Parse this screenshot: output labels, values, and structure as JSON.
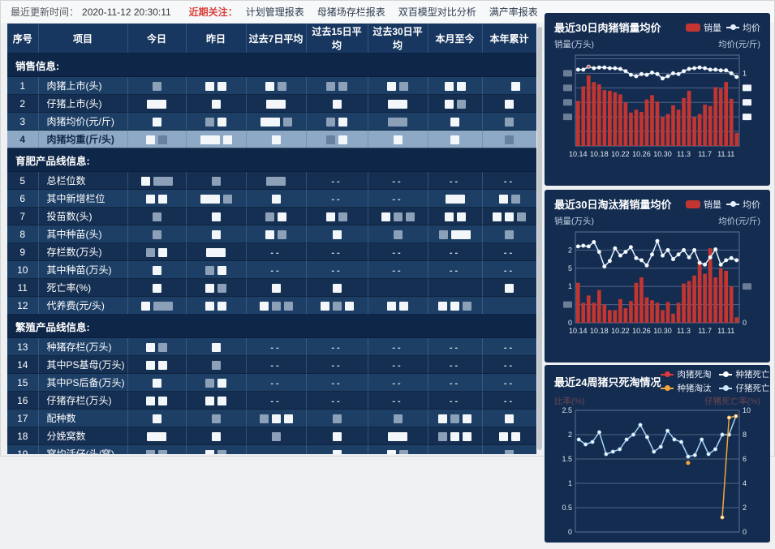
{
  "colors": {
    "bar_red": "#c23531",
    "line_light": "#e4f0fb",
    "accent_red": "#d9413d",
    "row_medium": "#1d3f66",
    "row_dark": "#152f52",
    "row_highlight": "#8ea9c6",
    "section_bg": "#0e2647",
    "header_bg": "#183760",
    "card_bg": "#132c50"
  },
  "topbar": {
    "updated_label": "最近更新时间：",
    "updated_time": "2020-11-12 20:30:11",
    "focus_label": "近期关注：",
    "links": [
      "计划管理报表",
      "母猪场存栏报表",
      "双百模型对比分析",
      "满产率报表"
    ]
  },
  "table": {
    "headers": [
      "序号",
      "项目",
      "今日",
      "昨日",
      "过去7日平均",
      "过去15日平均",
      "过去30日平均",
      "本月至今",
      "本年累计"
    ],
    "groups": [
      {
        "section": "销售信息:",
        "rows": [
          {
            "no": "1",
            "label": "肉猪上市(头)",
            "shade": "m",
            "cells": [
              "g",
              "w w",
              "w g",
              "g g",
              "w g",
              "w w",
              "gg w"
            ]
          },
          {
            "no": "2",
            "label": "仔猪上市(头)",
            "shade": "d",
            "cells": [
              "lw",
              "w",
              "lw",
              "w",
              "lw",
              "w g",
              "w"
            ]
          },
          {
            "no": "3",
            "label": "肉猪均价(元/斤)",
            "shade": "m",
            "cells": [
              "w",
              "g w",
              "lw g",
              "g w",
              "lg",
              "w",
              "g"
            ]
          },
          {
            "no": "4",
            "label": "肉猪均重(斤/头)",
            "shade": "h",
            "cells": [
              "w g",
              "lw w",
              "w",
              "g w",
              "w",
              "w",
              "g"
            ]
          }
        ]
      },
      {
        "section": "育肥产品线信息:",
        "rows": [
          {
            "no": "5",
            "label": "总栏位数",
            "shade": "d",
            "cells": [
              "w lg",
              "g",
              "lg",
              "d",
              "d",
              "d",
              "d"
            ]
          },
          {
            "no": "6",
            "label": "其中新增栏位",
            "shade": "m",
            "cells": [
              "w w",
              "lw g",
              "w",
              "d",
              "d",
              "lw",
              "w g"
            ]
          },
          {
            "no": "7",
            "label": "投苗数(头)",
            "shade": "d",
            "cells": [
              "g",
              "w",
              "g w",
              "w g",
              "w g g",
              "w w",
              "w w g"
            ]
          },
          {
            "no": "8",
            "label": "其中种苗(头)",
            "shade": "m",
            "cells": [
              "g",
              "w",
              "w g",
              "w",
              "g",
              "g lw",
              "g"
            ]
          },
          {
            "no": "9",
            "label": "存栏数(万头)",
            "shade": "d",
            "cells": [
              "g w",
              "lw",
              "d",
              "d",
              "d",
              "d",
              "d"
            ]
          },
          {
            "no": "10",
            "label": "其中种苗(万头)",
            "shade": "m",
            "cells": [
              "w",
              "g w",
              "d",
              "d",
              "d",
              "d",
              "d"
            ]
          },
          {
            "no": "11",
            "label": "死亡率(%)",
            "shade": "d",
            "cells": [
              "w",
              "w g",
              "w",
              "w",
              "",
              "",
              "w"
            ]
          },
          {
            "no": "12",
            "label": "代养费(元/头)",
            "shade": "m",
            "cells": [
              "w lg",
              "w w",
              "w g g",
              "w g w",
              "w w",
              "w w g",
              ""
            ]
          }
        ]
      },
      {
        "section": "繁殖产品线信息:",
        "rows": [
          {
            "no": "13",
            "label": "种猪存栏(万头)",
            "shade": "m",
            "cells": [
              "w g",
              "w",
              "d",
              "d",
              "d",
              "d",
              "d"
            ]
          },
          {
            "no": "14",
            "label": "其中PS基母(万头)",
            "shade": "d",
            "cells": [
              "w w",
              "g",
              "d",
              "d",
              "d",
              "d",
              "d"
            ]
          },
          {
            "no": "15",
            "label": "其中PS后备(万头)",
            "shade": "m",
            "cells": [
              "w",
              "g w",
              "d",
              "d",
              "d",
              "d",
              "d"
            ]
          },
          {
            "no": "16",
            "label": "仔猪存栏(万头)",
            "shade": "d",
            "cells": [
              "w w",
              "w w",
              "d",
              "d",
              "d",
              "d",
              "d"
            ]
          },
          {
            "no": "17",
            "label": "配种数",
            "shade": "m",
            "cells": [
              "w",
              "g",
              "g w w",
              "g",
              "g",
              "w g w",
              "w"
            ]
          },
          {
            "no": "18",
            "label": "分娩窝数",
            "shade": "d",
            "cells": [
              "lw",
              "w",
              "g",
              "w",
              "lw",
              "g w w",
              "w w"
            ]
          },
          {
            "no": "19",
            "label": "窝均活仔(头/窝)",
            "shade": "m",
            "cells": [
              "g g",
              "w g",
              "",
              "w",
              "w g",
              "",
              "g"
            ]
          }
        ]
      }
    ]
  },
  "charts": [
    {
      "chart_data": {
        "type": "bar",
        "title": "最近30日肉猪销量均价",
        "legend": [
          {
            "label": "销量",
            "type": "bar",
            "color": "#c23531"
          },
          {
            "label": "均价",
            "type": "line",
            "color": "#e4f0fb"
          }
        ],
        "left_axis_label": "销量(万头)",
        "right_axis_label": "均价(元/斤)",
        "x_tick_labels": [
          "10.14",
          "10.18",
          "10.22",
          "10.26",
          "10.30",
          "11.3",
          "11.7",
          "11.11"
        ],
        "x_tick_every": 4,
        "ylim": [
          0,
          1.25
        ],
        "grid_values": [
          1.2,
          1.0,
          0.8,
          0.6,
          0.4,
          0.2,
          0
        ],
        "left_ticks": [
          "",
          "*g",
          "*g",
          "*g",
          "*g",
          "",
          ""
        ],
        "right_ticks": [
          "",
          "1",
          "*w",
          "*w",
          "*w",
          "",
          ""
        ],
        "series": [
          {
            "name": "销量",
            "type": "bar",
            "values": [
              0.62,
              0.82,
              0.97,
              0.88,
              0.85,
              0.77,
              0.76,
              0.74,
              0.71,
              0.6,
              0.46,
              0.5,
              0.47,
              0.64,
              0.7,
              0.61,
              0.4,
              0.44,
              0.56,
              0.5,
              0.66,
              0.76,
              0.4,
              0.44,
              0.57,
              0.55,
              0.81,
              0.79,
              0.88,
              0.65,
              0.18
            ]
          },
          {
            "name": "均价",
            "type": "line",
            "color": "#e4f0fb",
            "mark_index": 2,
            "values": [
              1.05,
              1.05,
              1.09,
              1.07,
              1.08,
              1.08,
              1.07,
              1.07,
              1.06,
              1.03,
              0.98,
              0.96,
              0.99,
              0.98,
              1.01,
              0.99,
              0.93,
              0.96,
              1.0,
              0.99,
              1.03,
              1.06,
              1.07,
              1.08,
              1.07,
              1.05,
              1.05,
              1.04,
              1.04,
              1.0,
              0.95
            ]
          }
        ]
      }
    },
    {
      "chart_data": {
        "type": "bar",
        "title": "最近30日淘汰猪销量均价",
        "legend": [
          {
            "label": "销量",
            "type": "bar",
            "color": "#c23531"
          },
          {
            "label": "均价",
            "type": "line",
            "color": "#e4f0fb"
          }
        ],
        "left_axis_label": "销量(万头)",
        "right_axis_label": "均价(元/斤)",
        "x_tick_labels": [
          "10.14",
          "10.18",
          "10.22",
          "10.26",
          "10.30",
          "11.3",
          "11.7",
          "11.11"
        ],
        "x_tick_every": 4,
        "ylim": [
          0,
          2.5
        ],
        "grid_values": [
          2.0,
          1.5,
          1.0,
          0.5,
          0
        ],
        "left_ticks": [
          "2",
          "5",
          "1",
          "*g",
          "0"
        ],
        "right_ticks": [
          "",
          "",
          "*g",
          "",
          "0"
        ],
        "series": [
          {
            "name": "销量",
            "type": "bar",
            "values": [
              1.1,
              0.55,
              0.75,
              0.55,
              0.9,
              0.5,
              0.35,
              0.35,
              0.65,
              0.4,
              0.6,
              1.1,
              1.25,
              0.7,
              0.62,
              0.55,
              0.35,
              0.57,
              0.25,
              0.55,
              1.08,
              1.15,
              1.3,
              1.7,
              1.35,
              2.05,
              1.25,
              1.5,
              1.43,
              1.0,
              0.15
            ]
          },
          {
            "name": "均价",
            "type": "line",
            "color": "#e4f0fb",
            "values": [
              2.1,
              2.12,
              2.1,
              2.22,
              1.95,
              1.55,
              1.7,
              2.05,
              1.85,
              1.95,
              2.08,
              1.78,
              1.72,
              1.58,
              1.88,
              2.25,
              1.85,
              2.0,
              1.75,
              1.88,
              2.0,
              1.8,
              2.0,
              1.65,
              1.6,
              1.8,
              2.02,
              1.6,
              1.72,
              1.78,
              1.72
            ]
          }
        ]
      }
    },
    {
      "chart_data": {
        "type": "line",
        "title": "最近24周猪只死淘情况",
        "legend": [
          {
            "label": "肉猪死淘",
            "type": "line",
            "color": "#e4393c"
          },
          {
            "label": "种猪死亡",
            "type": "line",
            "color": "#ffffff"
          },
          {
            "label": "种猪淘汰",
            "type": "line",
            "color": "#f2a73b"
          },
          {
            "label": "仔猪死亡",
            "type": "line",
            "color": "#cfe6fa"
          }
        ],
        "left_axis_label": "比率(%)",
        "right_axis_label": "仔猪死亡率(%)",
        "x_tick_labels": [],
        "x_tick_every": 4,
        "ylim": [
          0,
          2.5
        ],
        "right_ylim": [
          0,
          10
        ],
        "grid_values": [
          2.5,
          2.0,
          1.5,
          1.0,
          0.5,
          0
        ],
        "left_ticks": [
          "2.5",
          "2",
          "1.5",
          "1",
          "0.5",
          "0"
        ],
        "right_ticks": [
          "10",
          "8",
          "6",
          "4",
          "2",
          "0"
        ],
        "series": [
          {
            "name": "仔猪死亡",
            "type": "line",
            "color": "#a9d5f5",
            "values": [
              1.9,
              1.8,
              1.85,
              2.05,
              1.6,
              1.65,
              1.7,
              1.9,
              2.0,
              2.2,
              1.95,
              1.65,
              1.75,
              2.08,
              1.9,
              1.85,
              1.55,
              1.58,
              1.9,
              1.6,
              1.7,
              2.0,
              2.0,
              2.38
            ]
          },
          {
            "name": "种猪淘汰",
            "type": "line",
            "color": "#f2a73b",
            "values": [
              null,
              null,
              null,
              null,
              null,
              null,
              null,
              null,
              null,
              null,
              null,
              null,
              null,
              null,
              null,
              null,
              null,
              null,
              null,
              null,
              null,
              0.3,
              2.35,
              2.38
            ],
            "points": [
              {
                "i": 16,
                "v": 1.42
              }
            ]
          }
        ]
      }
    }
  ]
}
